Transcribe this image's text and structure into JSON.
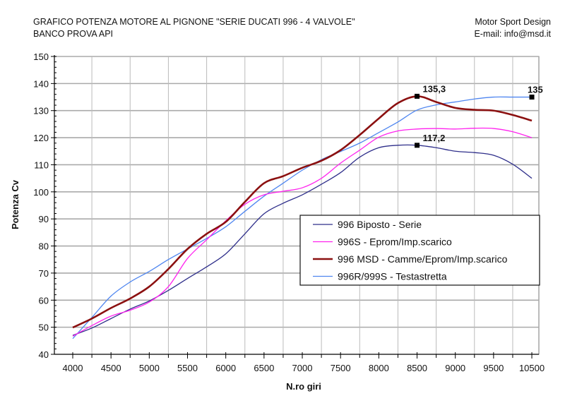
{
  "header": {
    "title_line1": "GRAFICO POTENZA MOTORE AL PIGNONE \"SERIE DUCATI 996  - 4 VALVOLE\"",
    "title_line2": "BANCO PROVA API",
    "company": "Motor Sport Design",
    "email": "E-mail: info@msd.it"
  },
  "chart_data": {
    "type": "line",
    "title": "GRAFICO POTENZA MOTORE AL PIGNONE \"SERIE DUCATI 996  - 4 VALVOLE\"",
    "xlabel": "N.ro giri",
    "ylabel": "Potenza Cv",
    "ylim": [
      40,
      150
    ],
    "yticks": [
      40,
      50,
      60,
      70,
      80,
      90,
      100,
      110,
      120,
      130,
      140,
      150
    ],
    "xticks": [
      "4000",
      "4500",
      "5000",
      "5500",
      "6000",
      "6500",
      "7000",
      "7500",
      "8000",
      "8500",
      "9000",
      "9500",
      "10500"
    ],
    "grid": true,
    "legend_position": "center-right",
    "x": [
      4000,
      4250,
      4500,
      4750,
      5000,
      5250,
      5500,
      5750,
      6000,
      6250,
      6500,
      6750,
      7000,
      7250,
      7500,
      7750,
      8000,
      8250,
      8500,
      8750,
      9000,
      9250,
      9500,
      10000,
      10500
    ],
    "series": [
      {
        "name": "996 Biposto - Serie",
        "color": "#2e2e8a",
        "width": 1.3,
        "values": [
          47,
          49.7,
          53.2,
          56.7,
          59.7,
          63.6,
          68,
          72.3,
          77.1,
          84.5,
          91.9,
          95.8,
          98.9,
          102.8,
          107.1,
          112.8,
          116.3,
          117.2,
          117.2,
          116.3,
          115,
          114.5,
          113.5,
          110.2,
          105
        ]
      },
      {
        "name": "996S - Eprom/Imp.scarico",
        "color": "#ff22ee",
        "width": 1.3,
        "values": [
          46.7,
          50.6,
          54.1,
          56.3,
          59.3,
          65,
          75.4,
          82.3,
          89.3,
          95.4,
          98.9,
          100.2,
          101.5,
          105,
          110.6,
          115.4,
          120.2,
          122.5,
          123.2,
          123.4,
          123.2,
          123.5,
          123.4,
          122.2,
          120
        ]
      },
      {
        "name": "996 MSD - Camme/Eprom/Imp.scarico",
        "color": "#8b1010",
        "width": 2.6,
        "values": [
          49.9,
          53.2,
          57.1,
          60.6,
          65,
          71.5,
          78.9,
          84.5,
          88.9,
          96.3,
          103.2,
          105.8,
          108.9,
          111.5,
          115.4,
          121,
          127.1,
          132.8,
          135.3,
          133.2,
          131,
          130.3,
          130,
          128.4,
          126.3
        ]
      },
      {
        "name": "996R/999S - Testastretta",
        "color": "#4f86f0",
        "width": 1.3,
        "values": [
          45.8,
          53.6,
          61.5,
          66.7,
          70.6,
          75,
          78.9,
          82.8,
          87.1,
          92.8,
          98.4,
          103.2,
          108,
          111.9,
          114.9,
          118,
          121.9,
          125.8,
          130.2,
          132.1,
          133.2,
          134.3,
          135,
          135,
          135
        ]
      }
    ],
    "annotations": [
      {
        "label": "135,3",
        "x": 8500,
        "y": 135.3
      },
      {
        "label": "117,2",
        "x": 8500,
        "y": 117.2
      },
      {
        "label": "135",
        "x": 10500,
        "y": 135
      }
    ]
  }
}
